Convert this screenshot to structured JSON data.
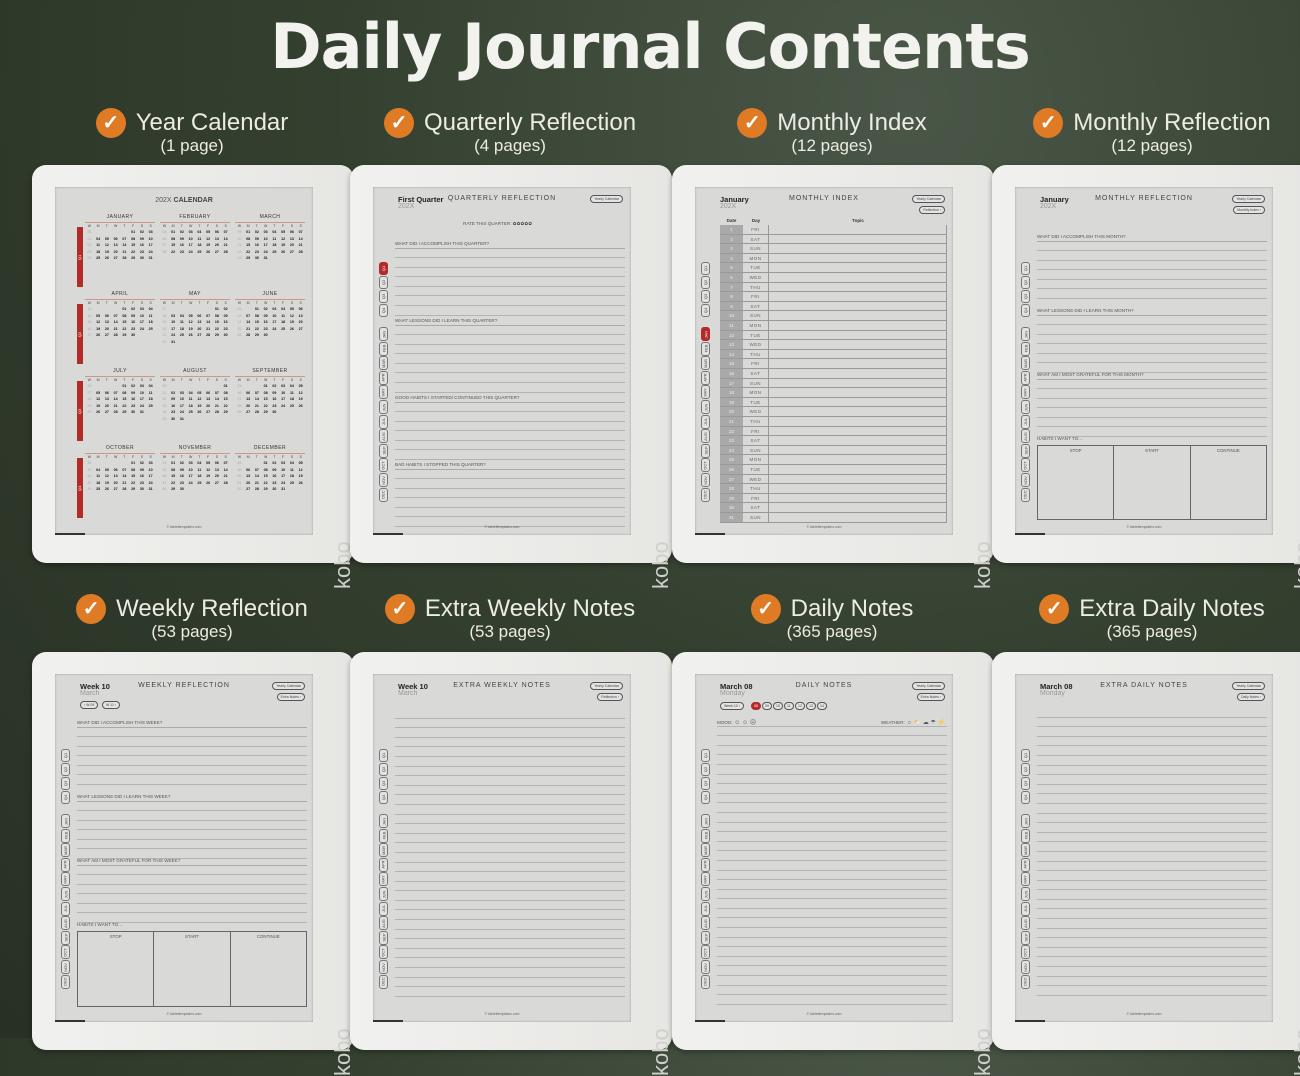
{
  "title": "Daily Journal Contents",
  "accent_color": "#e07b25",
  "highlight_color": "#b22a2a",
  "device_brand": "kobo",
  "footer": "© tablettemplates.com",
  "labels": [
    {
      "title": "Year Calendar",
      "count": "(1 page)"
    },
    {
      "title": "Quarterly Reflection",
      "count": "(4 pages)"
    },
    {
      "title": "Monthly Index",
      "count": "(12 pages)"
    },
    {
      "title": "Monthly Reflection",
      "count": "(12 pages)"
    },
    {
      "title": "Weekly Reflection",
      "count": "(53 pages)"
    },
    {
      "title": "Extra Weekly Notes",
      "count": "(53 pages)"
    },
    {
      "title": "Daily Notes",
      "count": "(365 pages)"
    },
    {
      "title": "Extra Daily Notes",
      "count": "(365 pages)"
    }
  ],
  "tabs": {
    "quarters": [
      "Q1",
      "Q2",
      "Q3",
      "Q4"
    ],
    "months": [
      "JAN",
      "FEB",
      "MAR",
      "APR",
      "MAY",
      "JUN",
      "JUL",
      "AUG",
      "SEP",
      "OCT",
      "NOV",
      "DEC"
    ]
  },
  "calendar": {
    "heading_light": "202X",
    "heading_bold": "CALENDAR",
    "weekdays": [
      "W",
      "M",
      "T",
      "W",
      "T",
      "F",
      "S",
      "S"
    ],
    "months": [
      {
        "name": "JANUARY",
        "starts_on": "FRI",
        "days": 31,
        "first_week": 53
      },
      {
        "name": "FEBRUARY",
        "starts_on": "MON",
        "days": 28,
        "first_week": 5
      },
      {
        "name": "MARCH",
        "starts_on": "MON",
        "days": 31,
        "first_week": 9
      },
      {
        "name": "APRIL",
        "starts_on": "THU",
        "days": 30,
        "first_week": 13
      },
      {
        "name": "MAY",
        "starts_on": "SAT",
        "days": 31,
        "first_week": 17
      },
      {
        "name": "JUNE",
        "starts_on": "TUE",
        "days": 30,
        "first_week": 22
      },
      {
        "name": "JULY",
        "starts_on": "THU",
        "days": 31,
        "first_week": 26
      },
      {
        "name": "AUGUST",
        "starts_on": "SUN",
        "days": 31,
        "first_week": 30
      },
      {
        "name": "SEPTEMBER",
        "starts_on": "WED",
        "days": 30,
        "first_week": 35
      },
      {
        "name": "OCTOBER",
        "starts_on": "FRI",
        "days": 31,
        "first_week": 39
      },
      {
        "name": "NOVEMBER",
        "starts_on": "MON",
        "days": 30,
        "first_week": 44
      },
      {
        "name": "DECEMBER",
        "starts_on": "WED",
        "days": 31,
        "first_week": 48
      }
    ]
  },
  "quarterly": {
    "title": "First Quarter",
    "sub": "202X",
    "heading": "QUARTERLY REFLECTION",
    "buttons": [
      "Yearly Calendar"
    ],
    "rate_label": "RATE THIS QUARTER:",
    "stars": 5,
    "active_tab": "Q1",
    "sections": [
      "WHAT DID I ACCOMPLISH THIS QUARTER?",
      "WHAT LESSONS DID I LEARN THIS QUARTER?",
      "GOOD HABITS I STARTED/ CONTINUED THIS QUARTER?",
      "BAD HABITS I STOPPED THIS QUARTER?"
    ]
  },
  "monthly_index": {
    "title": "January",
    "sub": "202X",
    "heading": "MONTHLY INDEX",
    "buttons": [
      "Yearly Calendar",
      "Reflection ›"
    ],
    "active_tab": "JAN",
    "columns": [
      "Date",
      "Day",
      "Topic"
    ],
    "days": [
      "FRI",
      "SAT",
      "SUN",
      "MON",
      "TUE",
      "WED",
      "THU",
      "FRI",
      "SAT",
      "SUN",
      "MON",
      "TUE",
      "WED",
      "THU",
      "FRI",
      "SAT",
      "SUN",
      "MON",
      "TUE",
      "WED",
      "THU",
      "FRI",
      "SAT",
      "SUN",
      "MON",
      "TUE",
      "WED",
      "THU",
      "FRI",
      "SAT",
      "SUN"
    ]
  },
  "monthly_reflection": {
    "title": "January",
    "sub": "202X",
    "heading": "MONTHLY REFLECTION",
    "buttons": [
      "Yearly Calendar",
      "Monthly Index ›"
    ],
    "sections": [
      "WHAT DID I ACCOMPLISH THIS MONTH?",
      "WHAT LESSONS DID I LEARN THIS MONTH?",
      "WHAT AM I MOST GRATEFUL FOR THIS MONTH?"
    ],
    "habits_label": "HABITS I WANT TO...",
    "habits": [
      "STOP",
      "START",
      "CONTINUE"
    ]
  },
  "weekly_reflection": {
    "title": "Week 10",
    "sub": "March",
    "heading": "WEEKLY REFLECTION",
    "buttons": [
      "Yearly Calendar",
      "Extra Notes ›"
    ],
    "week_pills": [
      "‹ W 09",
      "W 11 ›"
    ],
    "sections": [
      "WHAT DID I ACCOMPLISH THIS WEEK?",
      "WHAT LESSONS DID I LEARN THIS WEEK?",
      "WHAT AM I MOST GRATEFUL FOR THIS WEEK?"
    ],
    "habits_label": "HABITS I WANT TO...",
    "habits": [
      "STOP",
      "START",
      "CONTINUE"
    ]
  },
  "extra_weekly": {
    "title": "Week 10",
    "sub": "March",
    "heading": "EXTRA WEEKLY NOTES",
    "buttons": [
      "Yearly Calendar",
      "Reflection ›"
    ]
  },
  "daily": {
    "title": "March 08",
    "sub": "Monday",
    "heading": "DAILY NOTES",
    "buttons": [
      "Yearly Calendar",
      "Extra Notes ›"
    ],
    "week_pill": "Week 10 ›",
    "day_pills": [
      "08",
      "09",
      "10",
      "11",
      "12",
      "13",
      "14"
    ],
    "mood_label": "MOOD:",
    "moods": [
      "happy-icon",
      "neutral-icon",
      "sad-icon"
    ],
    "weather_label": "WEATHER:",
    "weather": [
      "sun-icon",
      "partly-cloudy-icon",
      "cloud-icon",
      "rain-icon",
      "storm-icon"
    ]
  },
  "extra_daily": {
    "title": "March 08",
    "sub": "Monday",
    "heading": "EXTRA DAILY NOTES",
    "buttons": [
      "Yearly Calendar",
      "Daily Notes ›"
    ]
  }
}
